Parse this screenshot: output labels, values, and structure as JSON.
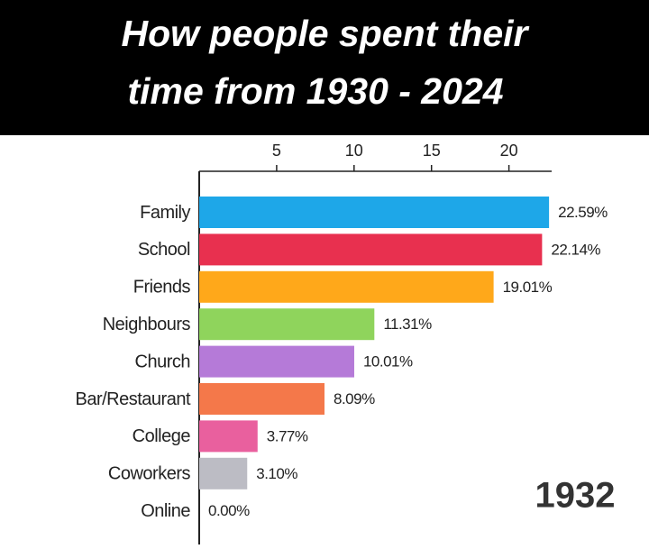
{
  "chart_data": {
    "type": "bar",
    "orientation": "horizontal",
    "title_lines": [
      "How people spent their",
      "time from 1930 - 2024"
    ],
    "categories": [
      "Family",
      "School",
      "Friends",
      "Neighbours",
      "Church",
      "Bar/Restaurant",
      "College",
      "Coworkers",
      "Online"
    ],
    "values": [
      22.59,
      22.14,
      19.01,
      11.31,
      10.01,
      8.09,
      3.77,
      3.1,
      0.0
    ],
    "value_labels": [
      "22.59%",
      "22.14%",
      "19.01%",
      "11.31%",
      "10.01%",
      "8.09%",
      "3.77%",
      "3.10%",
      "0.00%"
    ],
    "colors": [
      "#1ea7e8",
      "#e8304f",
      "#ffa81a",
      "#8fd45c",
      "#b57ad8",
      "#f4784a",
      "#e9609e",
      "#bcbcc4",
      "#bcbcc4"
    ],
    "xlim": [
      0,
      22.7
    ],
    "xticks": [
      5,
      10,
      15,
      20
    ],
    "annotation": "1932"
  }
}
